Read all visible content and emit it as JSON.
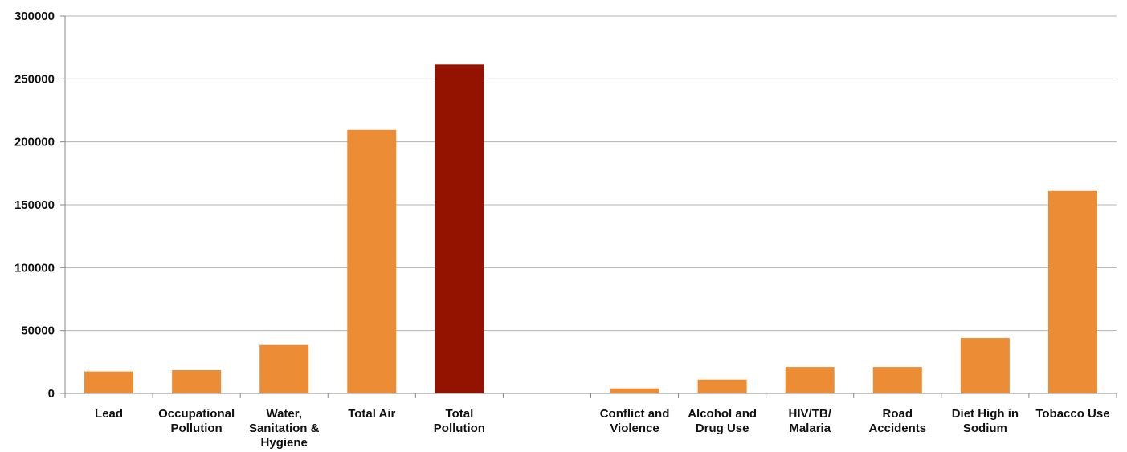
{
  "chart_data": {
    "type": "bar",
    "categories": [
      [
        "Lead"
      ],
      [
        "Occupational",
        "Pollution"
      ],
      [
        "Water,",
        "Sanitation &",
        "Hygiene"
      ],
      [
        "Total Air"
      ],
      [
        "Total",
        "Pollution"
      ],
      [],
      [
        "Conflict and",
        "Violence"
      ],
      [
        "Alcohol and",
        "Drug Use"
      ],
      [
        "HIV/TB/",
        "Malaria"
      ],
      [
        "Road",
        "Accidents"
      ],
      [
        "Diet High in",
        "Sodium"
      ],
      [
        "Tobacco Use"
      ]
    ],
    "values": [
      17500,
      18500,
      38500,
      209500,
      261500,
      null,
      4000,
      11000,
      21000,
      21000,
      44000,
      161000
    ],
    "ylim": [
      0,
      300000
    ],
    "yticks": [
      "0",
      "50000",
      "100000",
      "150000",
      "200000",
      "250000",
      "300000"
    ],
    "grid": true,
    "colors": {
      "bar": "#ec8c35",
      "highlight": "#931200",
      "grid": "#b3b3b3",
      "axis": "#888888"
    },
    "highlight_index": 4
  }
}
